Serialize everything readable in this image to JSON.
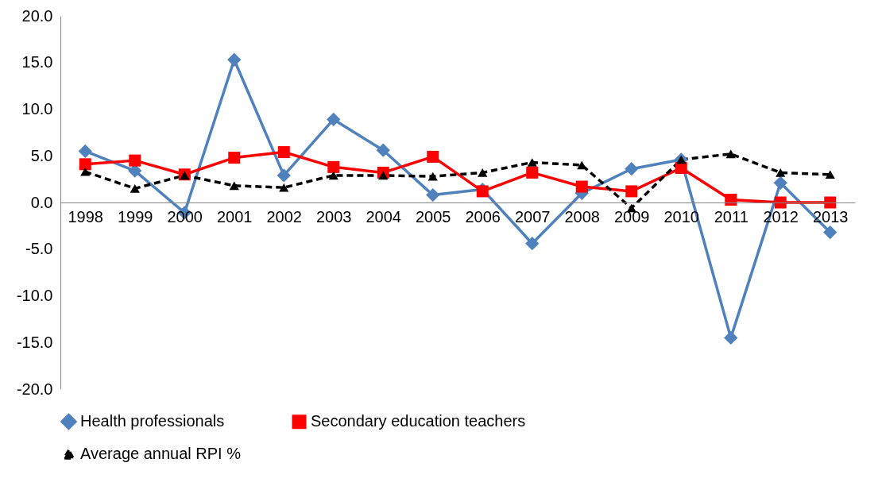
{
  "chart_data": {
    "type": "line",
    "categories": [
      "1998",
      "1999",
      "2000",
      "2001",
      "2002",
      "2003",
      "2004",
      "2005",
      "2006",
      "2007",
      "2008",
      "2009",
      "2010",
      "2011",
      "2012",
      "2013"
    ],
    "series": [
      {
        "name": "Health professionals",
        "color": "#4f81bd",
        "marker": "diamond",
        "line_style": "solid",
        "values": [
          5.5,
          3.4,
          -1.1,
          15.3,
          2.9,
          8.9,
          5.6,
          0.8,
          1.4,
          -4.4,
          1.0,
          3.6,
          4.6,
          -14.5,
          2.1,
          -3.2
        ]
      },
      {
        "name": "Secondary education teachers",
        "color": "#ff0000",
        "marker": "square",
        "line_style": "solid",
        "values": [
          4.1,
          4.5,
          3.0,
          4.8,
          5.4,
          3.8,
          3.2,
          4.9,
          1.2,
          3.2,
          1.7,
          1.2,
          3.7,
          0.3,
          0.0,
          0.0
        ]
      },
      {
        "name": "Average annual RPI %",
        "color": "#000000",
        "marker": "triangle",
        "line_style": "dashed",
        "values": [
          3.3,
          1.5,
          2.9,
          1.8,
          1.6,
          2.9,
          2.9,
          2.8,
          3.2,
          4.3,
          4.0,
          -0.6,
          4.6,
          5.2,
          3.2,
          3.0
        ]
      }
    ],
    "ylim": [
      -20,
      20
    ],
    "yticks": [
      {
        "value": -20,
        "label": "-20.0"
      },
      {
        "value": -15,
        "label": "-15.0"
      },
      {
        "value": -10,
        "label": "-10.0"
      },
      {
        "value": -5,
        "label": "-5.0"
      },
      {
        "value": 0,
        "label": "0.0"
      },
      {
        "value": 5,
        "label": "5.0"
      },
      {
        "value": 10,
        "label": "10.0"
      },
      {
        "value": 15,
        "label": "15.0"
      },
      {
        "value": 20,
        "label": "20.0"
      }
    ],
    "grid": false,
    "legend": "bottom"
  }
}
